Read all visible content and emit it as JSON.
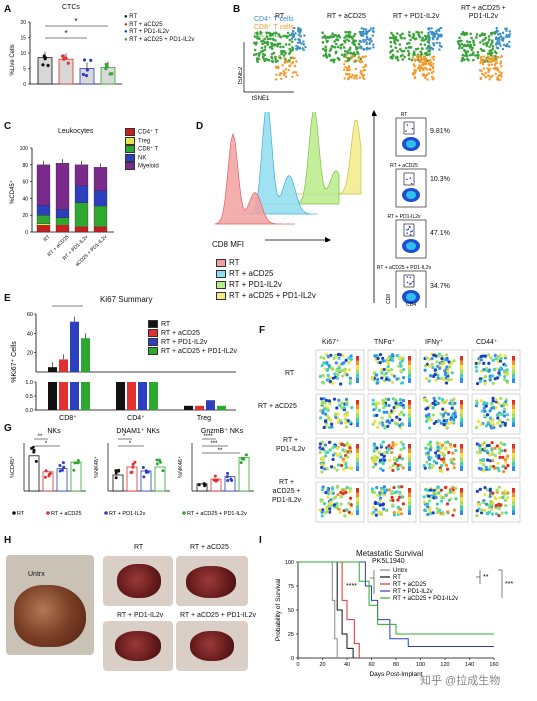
{
  "panels": [
    "A",
    "B",
    "C",
    "D",
    "E",
    "F",
    "G",
    "H",
    "I"
  ],
  "colors": {
    "rt": "#111111",
    "rt_acd25": "#e03030",
    "rt_pd1": "#2b3fbf",
    "rt_acd25_pd1": "#2fa82f",
    "cd4": "#3a8fc9",
    "cd8": "#f39a2c",
    "nk": "#3aa43a",
    "myeloid": "#7a2a8a",
    "treg": "#e6e64a"
  },
  "group_legend": [
    "RT",
    "RT + aCD25",
    "RT + PD1-IL2v",
    "RT + aCD25 + PD1-IL2v"
  ],
  "panel_a": {
    "title": "CTCs",
    "ylabel": "%Live Cells",
    "yticks": [
      "0",
      "5",
      "10",
      "15",
      "20"
    ],
    "sig": [
      "*",
      "*"
    ]
  },
  "panel_b": {
    "legend": [
      "CD4⁺ T cells",
      "CD8⁺ T cells",
      "NK cells"
    ],
    "groups": [
      "RT",
      "RT + aCD25",
      "RT + PD1-IL2v",
      "RT + aCD25 +\nPD1-IL2v"
    ],
    "ylabel": "tSNE2",
    "xlabel": "tSNE1"
  },
  "panel_c": {
    "title": "Leukocytes",
    "ylabel": "%CD45⁺",
    "yticks": [
      "0",
      "20",
      "40",
      "60",
      "80",
      "100"
    ],
    "legend": [
      "CD4⁺ T",
      "Treg",
      "CD8⁺ T",
      "NK",
      "Myeloid"
    ]
  },
  "panel_d": {
    "xlabel": "CD8 MFI",
    "legend": [
      "RT",
      "RT + aCD25",
      "RT + PD1-IL2v",
      "RT + aCD25 + PD1-IL2v"
    ],
    "gates": [
      {
        "label": "RT",
        "pct": "9.81%"
      },
      {
        "label": "RT + aCD25",
        "pct": "10.3%"
      },
      {
        "label": "RT + PD1-IL2v",
        "pct": "47.1%"
      },
      {
        "label": "RT + aCD25 + PD1-IL2v",
        "pct": "34.7%"
      }
    ],
    "ylab": "CD8",
    "xlab": "CD4"
  },
  "panel_e": {
    "title": "Ki67 Summary",
    "ylabel": "%Ki67⁺ Cells",
    "categories": [
      "CD8⁺",
      "CD4⁺",
      "Treg"
    ],
    "sig": "****",
    "yticks_top": [
      "20",
      "40",
      "60"
    ],
    "yticks_bottom": [
      "0.0",
      "0.5",
      "1.0"
    ]
  },
  "panel_f": {
    "columns": [
      "Ki67⁺",
      "TNFα⁺",
      "IFNγ⁺",
      "CD44⁺"
    ],
    "rows": [
      "RT",
      "RT + aCD25",
      "RT +\nPD1-IL2v",
      "RT +\naCD25 +\nPD1-IL2v"
    ]
  },
  "panel_g": {
    "plots": [
      {
        "title": "NKs",
        "ylabel": "%CD45⁺",
        "sig": [
          "**",
          "*"
        ],
        "legend": [
          "RT",
          "RT + aCD25"
        ]
      },
      {
        "title": "DNAM1⁺ NKs",
        "ylabel": "%NK46⁺",
        "sig": [
          "*",
          "*"
        ],
        "legend": [
          "RT + PD1-IL2v"
        ]
      },
      {
        "title": "GnzmB⁺ NKs",
        "ylabel": "%NK46⁺",
        "sig": [
          "****",
          "***",
          "**"
        ],
        "legend": [
          "RT + aCD25 + PD1-IL2v"
        ]
      }
    ]
  },
  "panel_h": {
    "labels": [
      "Untrx",
      "RT",
      "RT + aCD25",
      "RT + PD1-IL2v",
      "RT + aCD25 + PD1-IL2v"
    ]
  },
  "panel_i": {
    "title": "Metastatic Survival",
    "subtitle": "PK5L1940",
    "ylabel": "Probability of Survival",
    "xlabel": "Days Post-Implant",
    "legend": [
      "Untrx",
      "RT",
      "RT + aCD25",
      "RT + PD1-IL2v",
      "RT + aCD25 + PD1-IL2v"
    ],
    "sig": [
      "****",
      "**",
      "***"
    ],
    "yticks": [
      "0",
      "25",
      "50",
      "75",
      "100"
    ],
    "xticks": [
      "0",
      "20",
      "40",
      "60",
      "80",
      "100",
      "120",
      "140",
      "160"
    ]
  },
  "watermark": "知乎 @拉成生物",
  "chart_data": [
    {
      "type": "bar",
      "panel": "A",
      "title": "CTCs",
      "ylabel": "%Live Cells",
      "categories": [
        "RT",
        "RT + aCD25",
        "RT + PD1-IL2v",
        "RT + aCD25 + PD1-IL2v"
      ],
      "values": [
        8.5,
        8.0,
        5.0,
        5.3
      ],
      "ylim": [
        0,
        20
      ]
    },
    {
      "type": "bar",
      "panel": "C",
      "title": "Leukocytes",
      "ylabel": "%CD45⁺",
      "categories": [
        "RT",
        "RT + aCD25",
        "RT + PD1-IL2v",
        "RT + aCD25 + PD1-IL2v"
      ],
      "series": [
        {
          "name": "CD4⁺ T",
          "values": [
            8,
            8,
            6,
            6
          ]
        },
        {
          "name": "Treg",
          "values": [
            2,
            1,
            1,
            1
          ]
        },
        {
          "name": "CD8⁺ T",
          "values": [
            10,
            8,
            28,
            24
          ]
        },
        {
          "name": "NK",
          "values": [
            12,
            10,
            20,
            18
          ]
        },
        {
          "name": "Myeloid",
          "values": [
            48,
            55,
            25,
            28
          ]
        }
      ],
      "ylim": [
        0,
        100
      ]
    },
    {
      "type": "bar",
      "panel": "E",
      "title": "Ki67 Summary",
      "ylabel": "%Ki67⁺ Cells",
      "categories": [
        "CD8⁺",
        "CD4⁺",
        "Treg"
      ],
      "series": [
        {
          "name": "RT",
          "values": [
            5,
            1.0,
            0.15
          ]
        },
        {
          "name": "RT + aCD25",
          "values": [
            13,
            1.0,
            0.15
          ]
        },
        {
          "name": "RT + PD1-IL2v",
          "values": [
            52,
            1.0,
            0.35
          ]
        },
        {
          "name": "RT + aCD25 + PD1-IL2v",
          "values": [
            35,
            1.0,
            0.15
          ]
        }
      ]
    },
    {
      "type": "line",
      "panel": "I",
      "title": "Metastatic Survival",
      "xlabel": "Days Post-Implant",
      "ylabel": "Probability of Survival",
      "series": [
        {
          "name": "Untrx",
          "x": [
            0,
            26,
            28,
            30,
            32
          ],
          "y": [
            100,
            100,
            60,
            20,
            0
          ]
        },
        {
          "name": "RT",
          "x": [
            0,
            28,
            32,
            36,
            40,
            45
          ],
          "y": [
            100,
            100,
            50,
            25,
            10,
            0
          ]
        },
        {
          "name": "RT + aCD25",
          "x": [
            0,
            30,
            36,
            40,
            46,
            50
          ],
          "y": [
            100,
            100,
            60,
            40,
            15,
            0
          ]
        },
        {
          "name": "RT + PD1-IL2v",
          "x": [
            0,
            45,
            55,
            60,
            65,
            75,
            90,
            160
          ],
          "y": [
            100,
            100,
            75,
            60,
            40,
            20,
            12,
            12
          ]
        },
        {
          "name": "RT + aCD25 + PD1-IL2v",
          "x": [
            0,
            40,
            50,
            58,
            65,
            80,
            160
          ],
          "y": [
            100,
            100,
            80,
            55,
            35,
            25,
            25
          ]
        }
      ],
      "ylim": [
        0,
        100
      ],
      "xlim": [
        0,
        160
      ]
    }
  ]
}
